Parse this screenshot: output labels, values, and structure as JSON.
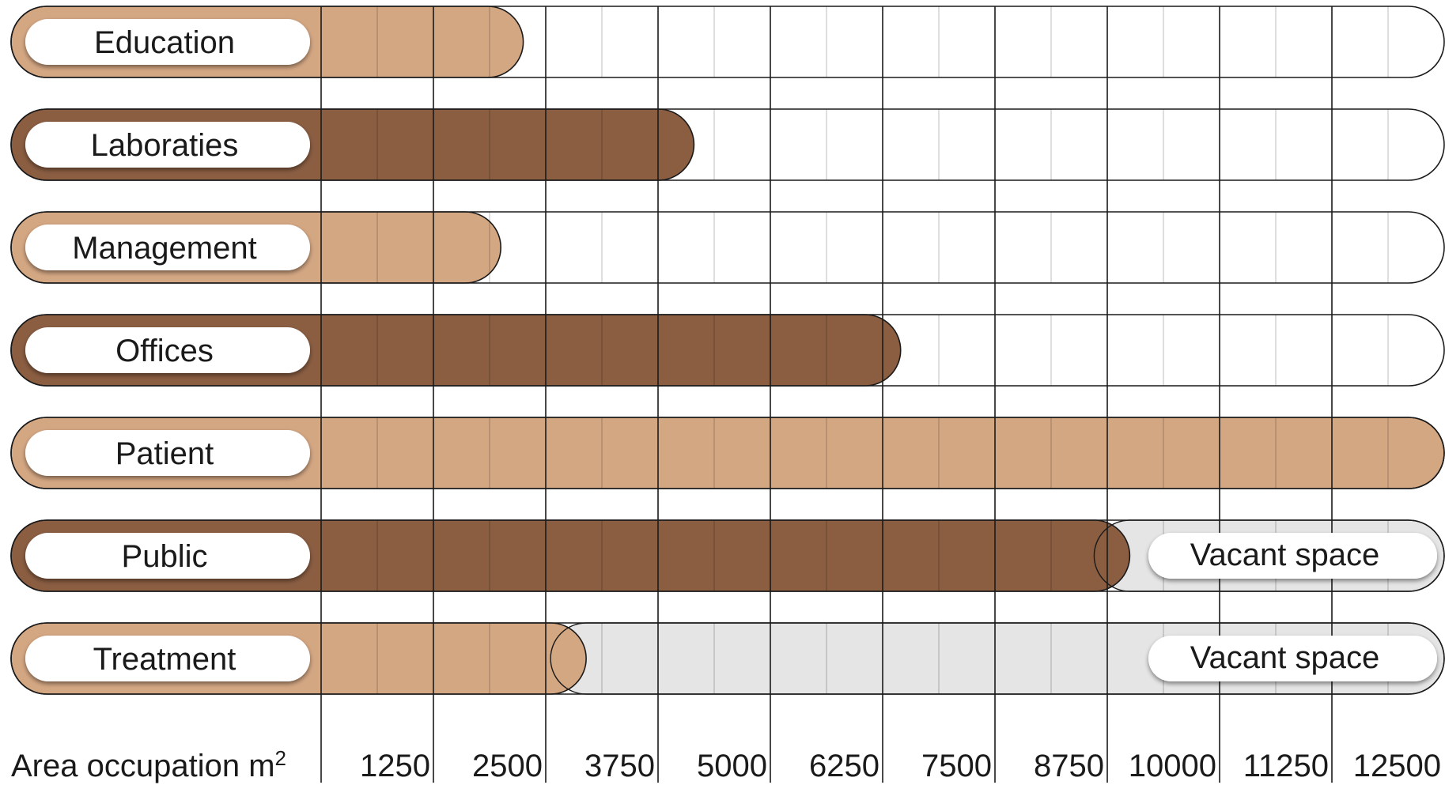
{
  "chart_data": {
    "type": "bar",
    "orientation": "horizontal",
    "title": "",
    "categories": [
      "Education",
      "Laboraties",
      "Management",
      "Offices",
      "Patient",
      "Public",
      "Treatment"
    ],
    "values": [
      2250,
      4150,
      2000,
      6450,
      12500,
      9000,
      2950
    ],
    "vacant": [
      {
        "category": "Public",
        "from": 9000,
        "to": 12500,
        "label": "Vacant space"
      },
      {
        "category": "Treatment",
        "from": 2950,
        "to": 12500,
        "label": "Vacant space"
      }
    ],
    "xlabel": "Area occupation",
    "xlabel_unit_base": "m",
    "xlabel_unit_sup": "2",
    "xticks": [
      "1250",
      "2500",
      "3750",
      "5000",
      "6250",
      "7500",
      "8750",
      "10000",
      "11250",
      "12500"
    ],
    "xlim": [
      0,
      12500
    ],
    "grid": true,
    "colors": {
      "light": "#d4a783",
      "dark": "#8b5e42",
      "vacant": "#e5e5e5",
      "outline": "#1a1a1a",
      "grid_major": "#1a1a1a",
      "grid_minor": "#c8c8c8"
    },
    "bar_colors": [
      "light",
      "dark",
      "light",
      "dark",
      "light",
      "dark",
      "light"
    ]
  }
}
